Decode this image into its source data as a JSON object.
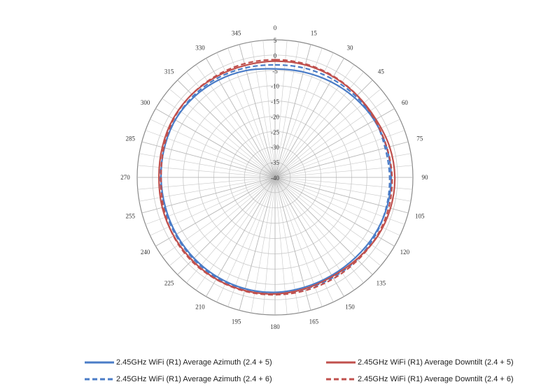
{
  "chart_data": {
    "type": "line",
    "subtype": "polar",
    "title": "",
    "angle_labels": [
      "0",
      "15",
      "30",
      "45",
      "60",
      "75",
      "90",
      "105",
      "120",
      "135",
      "150",
      "165",
      "180",
      "195",
      "210",
      "225",
      "240",
      "255",
      "270",
      "285",
      "300",
      "315",
      "330",
      "345"
    ],
    "radial_labels": [
      "5",
      "0",
      "-5",
      "-10",
      "-15",
      "-20",
      "-25",
      "-30",
      "-35",
      "-40"
    ],
    "radial_range": [
      -40,
      5
    ],
    "grid": true,
    "legend_position": "bottom",
    "angles": [
      0,
      15,
      30,
      45,
      60,
      75,
      90,
      105,
      120,
      135,
      150,
      165,
      180,
      195,
      210,
      225,
      240,
      255,
      270,
      285,
      300,
      315,
      330,
      345
    ],
    "series": [
      {
        "name": "2.45GHz WiFi (R1) Average Azimuth (2.4 + 5)",
        "color": "#4a7cc7",
        "dash": "solid",
        "values": [
          -4.5,
          -4.3,
          -3.8,
          -3.2,
          -2.6,
          -2.3,
          -2.1,
          -2.2,
          -2.5,
          -2.9,
          -3.0,
          -2.8,
          -2.4,
          -2.3,
          -2.4,
          -2.6,
          -2.8,
          -2.9,
          -2.8,
          -2.6,
          -2.4,
          -2.7,
          -3.2,
          -3.8
        ]
      },
      {
        "name": "2.45GHz WiFi (R1) Average Azimuth (2.4 + 6)",
        "color": "#4a7cc7",
        "dash": "dashed",
        "values": [
          -3.2,
          -3.0,
          -2.8,
          -2.6,
          -2.4,
          -2.8,
          -2.6,
          -2.4,
          -2.2,
          -2.1,
          -2.2,
          -2.2,
          -1.9,
          -1.8,
          -2.0,
          -2.3,
          -2.5,
          -2.6,
          -2.6,
          -2.6,
          -2.4,
          -2.3,
          -2.5,
          -2.9
        ]
      },
      {
        "name": "2.45GHz WiFi (R1) Average Downtilt (2.4 + 5)",
        "color": "#c0504d",
        "dash": "solid",
        "values": [
          -2.0,
          -1.9,
          -2.0,
          -2.1,
          -2.0,
          -1.3,
          -0.9,
          -1.0,
          -1.4,
          -2.2,
          -2.6,
          -2.3,
          -1.9,
          -1.7,
          -1.6,
          -1.7,
          -1.8,
          -1.9,
          -2.1,
          -1.9,
          -1.6,
          -1.6,
          -1.9,
          -2.1
        ]
      },
      {
        "name": "2.45GHz WiFi (R1) Average Downtilt (2.4 + 6)",
        "color": "#c0504d",
        "dash": "dashed",
        "values": [
          -1.5,
          -1.6,
          -1.8,
          -2.1,
          -2.4,
          -2.2,
          -1.8,
          -1.6,
          -1.6,
          -1.8,
          -1.8,
          -1.7,
          -1.6,
          -1.5,
          -1.5,
          -1.4,
          -1.7,
          -2.3,
          -2.8,
          -2.4,
          -1.8,
          -1.6,
          -1.6,
          -1.5
        ]
      }
    ]
  }
}
